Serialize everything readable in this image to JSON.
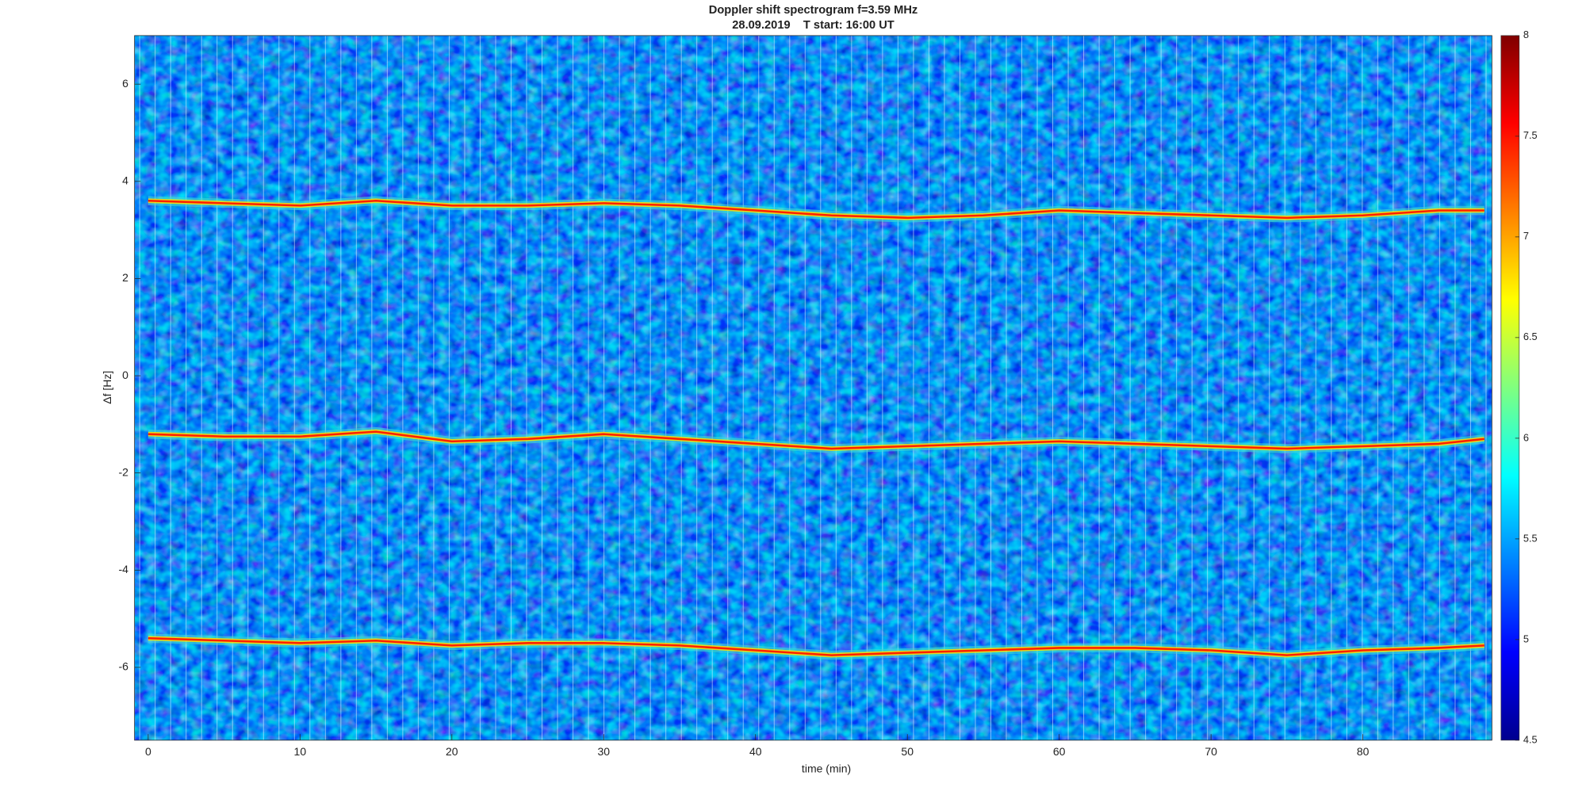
{
  "chart_data": {
    "type": "spectrogram",
    "title": "Doppler shift spectrogram f=3.59 MHz",
    "subtitle": "28.09.2019    T start: 16:00 UT",
    "x_label": "time (min)",
    "y_label": "Δf [Hz]",
    "xlim": [
      -0.9,
      88.5
    ],
    "xticks": [
      0,
      10,
      20,
      30,
      40,
      50,
      60,
      70,
      80
    ],
    "ylim": [
      -7.5,
      7
    ],
    "yticks": [
      -6,
      -4,
      -2,
      0,
      2,
      4,
      6
    ],
    "x": [
      0,
      5,
      10,
      15,
      20,
      25,
      30,
      35,
      40,
      45,
      50,
      55,
      60,
      65,
      70,
      75,
      80,
      85,
      88
    ],
    "series": [
      {
        "color": "#ff2000",
        "values": [
          3.6,
          3.55,
          3.5,
          3.6,
          3.5,
          3.5,
          3.55,
          3.5,
          3.4,
          3.3,
          3.25,
          3.3,
          3.4,
          3.35,
          3.3,
          3.25,
          3.3,
          3.4,
          3.4
        ]
      },
      {
        "color": "#ff2000",
        "values": [
          -1.2,
          -1.25,
          -1.25,
          -1.15,
          -1.35,
          -1.3,
          -1.2,
          -1.3,
          -1.4,
          -1.5,
          -1.45,
          -1.4,
          -1.35,
          -1.4,
          -1.45,
          -1.5,
          -1.45,
          -1.4,
          -1.3
        ]
      },
      {
        "color": "#ff2000",
        "values": [
          -5.4,
          -5.45,
          -5.5,
          -5.45,
          -5.55,
          -5.5,
          -5.5,
          -5.55,
          -5.65,
          -5.75,
          -5.7,
          -5.65,
          -5.6,
          -5.6,
          -5.65,
          -5.75,
          -5.65,
          -5.6,
          -5.55
        ]
      }
    ],
    "colorbar": {
      "lim": [
        4.5,
        8
      ],
      "ticks": [
        4.5,
        5,
        5.5,
        6,
        6.5,
        7,
        7.5,
        8
      ]
    }
  }
}
